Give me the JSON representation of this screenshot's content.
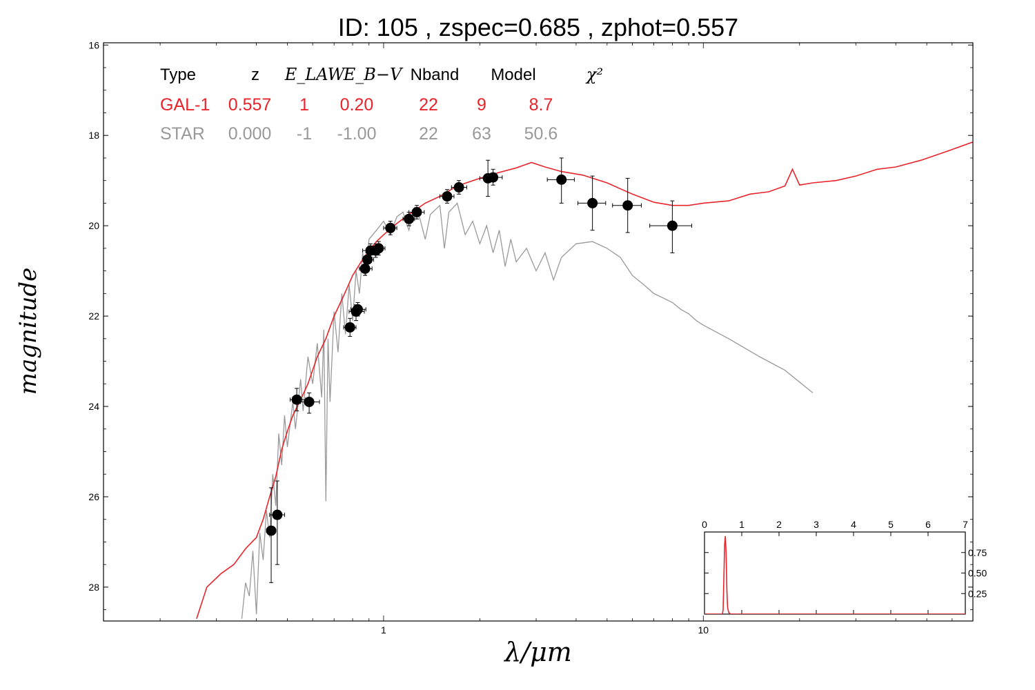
{
  "title": "ID:  105   , zspec=0.685 , zphot=0.557",
  "colors": {
    "gal": "#e8232a",
    "star": "#999999",
    "points": "#000000",
    "header": "#000000"
  },
  "chart_data": {
    "type": "scatter",
    "xlabel": "λ/μm",
    "ylabel": "magnitude",
    "x_scale": "log",
    "x_ticks": [
      {
        "value": 1,
        "label": "1"
      },
      {
        "value": 10,
        "label": "10"
      }
    ],
    "y_ticks": [
      {
        "value": 16,
        "label": "16"
      },
      {
        "value": 18,
        "label": "18"
      },
      {
        "value": 20,
        "label": "20"
      },
      {
        "value": 22,
        "label": "22"
      },
      {
        "value": 24,
        "label": "24"
      },
      {
        "value": 26,
        "label": "26"
      },
      {
        "value": 28,
        "label": "28"
      }
    ],
    "xlim": [
      0.133,
      69.7
    ],
    "ylim": [
      28.75,
      15.95
    ],
    "y_inverted": true,
    "legend_table": {
      "headers": [
        "Type",
        "z",
        "E_LAW",
        "E_B−V",
        "Nband",
        "Model",
        "χ²"
      ],
      "rows": [
        {
          "name": "GAL-1",
          "color": "#e8232a",
          "cells": [
            "GAL-1",
            "0.557",
            "1",
            "0.20",
            "22",
            "9",
            "8.7"
          ]
        },
        {
          "name": "STAR",
          "color": "#999999",
          "cells": [
            "STAR",
            "0.000",
            "-1",
            "-1.00",
            "22",
            "63",
            "50.6"
          ]
        }
      ]
    },
    "series": [
      {
        "name": "GAL-1",
        "kind": "line",
        "color": "#e8232a",
        "points": [
          [
            0.26,
            28.7
          ],
          [
            0.28,
            28.0
          ],
          [
            0.31,
            27.7
          ],
          [
            0.34,
            27.5
          ],
          [
            0.37,
            27.15
          ],
          [
            0.4,
            26.9
          ],
          [
            0.42,
            26.5
          ],
          [
            0.44,
            26.0
          ],
          [
            0.46,
            25.55
          ],
          [
            0.48,
            24.95
          ],
          [
            0.5,
            24.55
          ],
          [
            0.52,
            24.2
          ],
          [
            0.55,
            23.85
          ],
          [
            0.58,
            23.5
          ],
          [
            0.62,
            22.9
          ],
          [
            0.66,
            22.5
          ],
          [
            0.7,
            22.0
          ],
          [
            0.75,
            21.55
          ],
          [
            0.8,
            21.1
          ],
          [
            0.85,
            20.8
          ],
          [
            0.9,
            20.55
          ],
          [
            0.95,
            20.35
          ],
          [
            1.0,
            20.2
          ],
          [
            1.1,
            19.95
          ],
          [
            1.2,
            19.75
          ],
          [
            1.35,
            19.5
          ],
          [
            1.5,
            19.35
          ],
          [
            1.7,
            19.12
          ],
          [
            2.0,
            18.95
          ],
          [
            2.3,
            18.82
          ],
          [
            2.6,
            18.72
          ],
          [
            2.9,
            18.6
          ],
          [
            3.2,
            18.7
          ],
          [
            3.6,
            18.8
          ],
          [
            4.2,
            18.88
          ],
          [
            5.0,
            19.05
          ],
          [
            6.0,
            19.3
          ],
          [
            7.0,
            19.48
          ],
          [
            8.0,
            19.55
          ],
          [
            9.0,
            19.55
          ],
          [
            10.0,
            19.5
          ],
          [
            12.0,
            19.45
          ],
          [
            14.0,
            19.3
          ],
          [
            16.0,
            19.25
          ],
          [
            18.0,
            19.12
          ],
          [
            19.0,
            18.75
          ],
          [
            20.0,
            19.1
          ],
          [
            22.0,
            19.05
          ],
          [
            26.0,
            19.0
          ],
          [
            30.0,
            18.9
          ],
          [
            35.0,
            18.75
          ],
          [
            40.0,
            18.7
          ],
          [
            48.0,
            18.55
          ],
          [
            58.0,
            18.35
          ],
          [
            69.5,
            18.15
          ]
        ]
      },
      {
        "name": "STAR",
        "kind": "line",
        "color": "#999999",
        "points": [
          [
            0.36,
            28.7
          ],
          [
            0.37,
            27.9
          ],
          [
            0.38,
            28.2
          ],
          [
            0.39,
            27.2
          ],
          [
            0.4,
            28.6
          ],
          [
            0.41,
            26.8
          ],
          [
            0.42,
            27.4
          ],
          [
            0.43,
            26.3
          ],
          [
            0.44,
            26.9
          ],
          [
            0.45,
            25.5
          ],
          [
            0.46,
            26.2
          ],
          [
            0.47,
            24.6
          ],
          [
            0.48,
            25.3
          ],
          [
            0.49,
            24.2
          ],
          [
            0.5,
            24.9
          ],
          [
            0.52,
            23.9
          ],
          [
            0.53,
            24.5
          ],
          [
            0.55,
            23.4
          ],
          [
            0.56,
            24.1
          ],
          [
            0.58,
            22.9
          ],
          [
            0.6,
            23.5
          ],
          [
            0.62,
            22.6
          ],
          [
            0.64,
            23.8
          ],
          [
            0.65,
            22.3
          ],
          [
            0.66,
            26.1
          ],
          [
            0.67,
            22.5
          ],
          [
            0.68,
            23.9
          ],
          [
            0.7,
            21.9
          ],
          [
            0.72,
            22.8
          ],
          [
            0.74,
            21.5
          ],
          [
            0.76,
            22.4
          ],
          [
            0.78,
            21.3
          ],
          [
            0.8,
            22.1
          ],
          [
            0.82,
            21.0
          ],
          [
            0.84,
            21.5
          ],
          [
            0.86,
            20.6
          ],
          [
            0.88,
            21.1
          ],
          [
            0.9,
            20.3
          ],
          [
            0.95,
            20.1
          ],
          [
            1.0,
            19.9
          ],
          [
            1.05,
            20.2
          ],
          [
            1.1,
            19.8
          ],
          [
            1.15,
            19.7
          ],
          [
            1.2,
            20.1
          ],
          [
            1.25,
            19.6
          ],
          [
            1.3,
            19.85
          ],
          [
            1.35,
            20.3
          ],
          [
            1.4,
            19.75
          ],
          [
            1.5,
            19.55
          ],
          [
            1.55,
            20.5
          ],
          [
            1.6,
            19.7
          ],
          [
            1.7,
            19.5
          ],
          [
            1.8,
            20.2
          ],
          [
            1.9,
            19.9
          ],
          [
            2.0,
            20.4
          ],
          [
            2.1,
            20.0
          ],
          [
            2.2,
            20.6
          ],
          [
            2.3,
            20.1
          ],
          [
            2.4,
            20.9
          ],
          [
            2.5,
            20.3
          ],
          [
            2.6,
            20.8
          ],
          [
            2.8,
            20.5
          ],
          [
            3.0,
            21.0
          ],
          [
            3.2,
            20.6
          ],
          [
            3.4,
            21.2
          ],
          [
            3.6,
            20.7
          ],
          [
            4.0,
            20.4
          ],
          [
            4.5,
            20.35
          ],
          [
            5.0,
            20.5
          ],
          [
            5.5,
            20.7
          ],
          [
            6.0,
            21.1
          ],
          [
            6.5,
            21.3
          ],
          [
            7.0,
            21.5
          ],
          [
            7.5,
            21.6
          ],
          [
            8.0,
            21.7
          ],
          [
            8.5,
            21.85
          ],
          [
            9.0,
            21.95
          ],
          [
            9.5,
            22.1
          ],
          [
            10.0,
            22.2
          ],
          [
            12.0,
            22.5
          ],
          [
            15.0,
            22.9
          ],
          [
            18.0,
            23.2
          ],
          [
            22.0,
            23.7
          ]
        ]
      },
      {
        "name": "observed",
        "kind": "points",
        "color": "#000000",
        "points": [
          {
            "x": 0.445,
            "y": 26.75,
            "xerr": [
              0.43,
              0.46
            ],
            "yerr": [
              25.8,
              27.9
            ]
          },
          {
            "x": 0.465,
            "y": 26.4,
            "xerr": [
              0.44,
              0.49
            ],
            "yerr": [
              25.65,
              27.5
            ]
          },
          {
            "x": 0.535,
            "y": 23.85,
            "xerr": [
              0.51,
              0.57
            ],
            "yerr": [
              23.6,
              24.1
            ]
          },
          {
            "x": 0.585,
            "y": 23.9,
            "xerr": [
              0.55,
              0.63
            ],
            "yerr": [
              23.7,
              24.15
            ]
          },
          {
            "x": 0.785,
            "y": 22.25,
            "xerr": [
              0.75,
              0.82
            ],
            "yerr": [
              22.05,
              22.45
            ]
          },
          {
            "x": 0.82,
            "y": 21.9,
            "xerr": [
              0.78,
              0.87
            ],
            "yerr": [
              21.75,
              22.1
            ]
          },
          {
            "x": 0.83,
            "y": 21.85,
            "xerr": [
              0.79,
              0.88
            ],
            "yerr": [
              21.7,
              22.0
            ]
          },
          {
            "x": 0.875,
            "y": 20.95,
            "xerr": [
              0.84,
              0.92
            ],
            "yerr": [
              20.8,
              21.1
            ]
          },
          {
            "x": 0.89,
            "y": 20.75,
            "xerr": [
              0.86,
              0.93
            ],
            "yerr": [
              20.6,
              20.9
            ]
          },
          {
            "x": 0.91,
            "y": 20.55,
            "xerr": [
              0.86,
              0.96
            ],
            "yerr": [
              20.4,
              20.7
            ]
          },
          {
            "x": 0.945,
            "y": 20.55,
            "xerr": [
              0.91,
              0.98
            ],
            "yerr": [
              20.4,
              20.7
            ]
          },
          {
            "x": 0.965,
            "y": 20.5,
            "xerr": [
              0.93,
              1.01
            ],
            "yerr": [
              20.35,
              20.65
            ]
          },
          {
            "x": 1.05,
            "y": 20.05,
            "xerr": [
              1.0,
              1.1
            ],
            "yerr": [
              19.9,
              20.2
            ]
          },
          {
            "x": 1.2,
            "y": 19.85,
            "xerr": [
              1.15,
              1.25
            ],
            "yerr": [
              19.7,
              20.0
            ]
          },
          {
            "x": 1.27,
            "y": 19.7,
            "xerr": [
              1.2,
              1.34
            ],
            "yerr": [
              19.55,
              19.85
            ]
          },
          {
            "x": 1.58,
            "y": 19.35,
            "xerr": [
              1.5,
              1.66
            ],
            "yerr": [
              19.2,
              19.5
            ]
          },
          {
            "x": 1.72,
            "y": 19.15,
            "xerr": [
              1.63,
              1.82
            ],
            "yerr": [
              19.0,
              19.3
            ]
          },
          {
            "x": 2.12,
            "y": 18.95,
            "xerr": [
              2.0,
              2.25
            ],
            "yerr": [
              18.55,
              19.35
            ]
          },
          {
            "x": 2.2,
            "y": 18.93,
            "xerr": [
              2.08,
              2.35
            ],
            "yerr": [
              18.75,
              19.1
            ]
          },
          {
            "x": 3.6,
            "y": 18.98,
            "xerr": [
              3.25,
              3.95
            ],
            "yerr": [
              18.5,
              19.5
            ]
          },
          {
            "x": 4.5,
            "y": 19.5,
            "xerr": [
              4.05,
              4.95
            ],
            "yerr": [
              18.9,
              20.1
            ]
          },
          {
            "x": 5.8,
            "y": 19.55,
            "xerr": [
              5.2,
              6.4
            ],
            "yerr": [
              18.95,
              20.15
            ]
          },
          {
            "x": 8.0,
            "y": 20.0,
            "xerr": [
              6.8,
              9.2
            ],
            "yerr": [
              19.45,
              20.6
            ]
          }
        ]
      }
    ],
    "inset": {
      "type": "line",
      "xlim": [
        0,
        7
      ],
      "ylim": [
        0,
        1.0
      ],
      "x_ticks": [
        "0",
        "1",
        "2",
        "3",
        "4",
        "5",
        "6",
        "7"
      ],
      "y_ticks": [
        {
          "value": 0.25,
          "label": "0.25"
        },
        {
          "value": 0.5,
          "label": "0.50"
        },
        {
          "value": 0.75,
          "label": "0.75"
        }
      ],
      "series": {
        "color": "#e8232a",
        "points": [
          [
            0,
            0
          ],
          [
            0.48,
            0
          ],
          [
            0.5,
            0.05
          ],
          [
            0.52,
            0.45
          ],
          [
            0.54,
            0.85
          ],
          [
            0.56,
            0.95
          ],
          [
            0.58,
            0.75
          ],
          [
            0.6,
            0.3
          ],
          [
            0.62,
            0.08
          ],
          [
            0.65,
            0.02
          ],
          [
            0.7,
            0
          ],
          [
            7,
            0
          ]
        ]
      }
    }
  }
}
